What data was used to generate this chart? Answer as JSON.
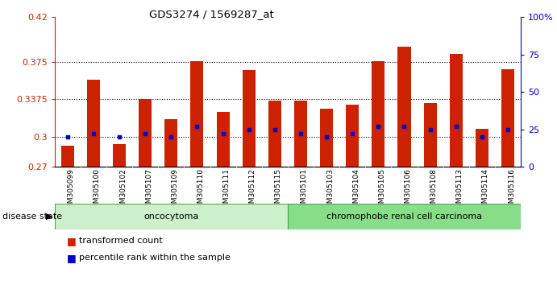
{
  "title": "GDS3274 / 1569287_at",
  "samples": [
    "GSM305099",
    "GSM305100",
    "GSM305102",
    "GSM305107",
    "GSM305109",
    "GSM305110",
    "GSM305111",
    "GSM305112",
    "GSM305115",
    "GSM305101",
    "GSM305103",
    "GSM305104",
    "GSM305105",
    "GSM305106",
    "GSM305108",
    "GSM305113",
    "GSM305114",
    "GSM305116"
  ],
  "transformed_count": [
    0.291,
    0.357,
    0.293,
    0.338,
    0.318,
    0.376,
    0.325,
    0.367,
    0.336,
    0.336,
    0.328,
    0.332,
    0.376,
    0.39,
    0.334,
    0.383,
    0.308,
    0.368
  ],
  "percentile_rank": [
    20,
    22,
    20,
    22,
    20,
    27,
    22,
    25,
    25,
    22,
    20,
    22,
    27,
    27,
    25,
    27,
    20,
    25
  ],
  "ylim_left": [
    0.27,
    0.42
  ],
  "ylim_right": [
    0,
    100
  ],
  "yticks_left": [
    0.27,
    0.3,
    0.3375,
    0.375,
    0.42
  ],
  "yticks_right": [
    0,
    25,
    50,
    75,
    100
  ],
  "ytick_labels_left": [
    "0.27",
    "0.3",
    "0.3375",
    "0.375",
    "0.42"
  ],
  "ytick_labels_right": [
    "0",
    "25",
    "50",
    "75",
    "100%"
  ],
  "bar_color": "#cc2200",
  "dot_color": "#0000cc",
  "plot_bg": "#ffffff",
  "tick_bg": "#d0d0d0",
  "oncocytoma_n": 9,
  "group1_label": "oncocytoma",
  "group2_label": "chromophobe renal cell carcinoma",
  "legend_bar_label": "transformed count",
  "legend_dot_label": "percentile rank within the sample",
  "disease_state_label": "disease state",
  "group1_color": "#ccf0cc",
  "group2_color": "#88dd88"
}
